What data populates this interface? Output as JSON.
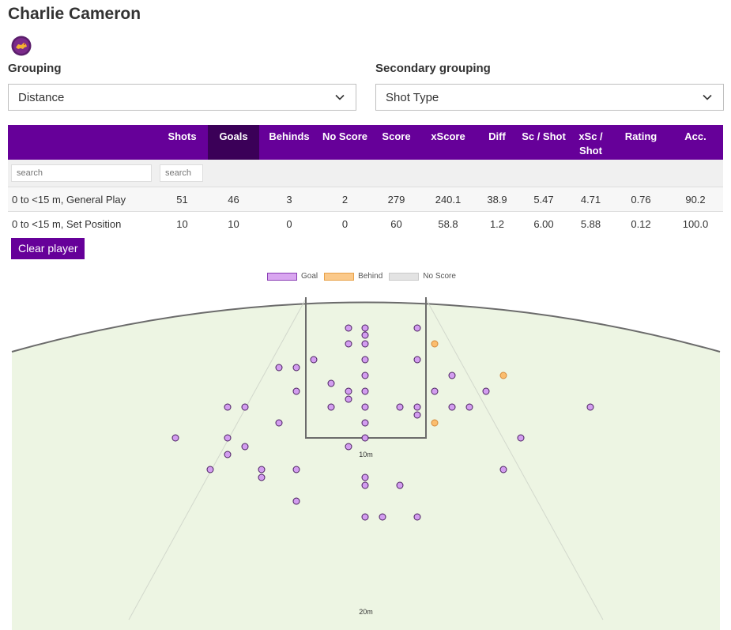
{
  "player": {
    "name": "Charlie Cameron",
    "logo_icon": "brisbane-lions-logo-icon"
  },
  "grouping": {
    "label": "Grouping",
    "value": "Distance"
  },
  "secondary_grouping": {
    "label": "Secondary grouping",
    "value": "Shot Type"
  },
  "table": {
    "headers": [
      "",
      "Shots",
      "Goals",
      "Behinds",
      "No Score",
      "Score",
      "xScore",
      "Diff",
      "Sc / Shot",
      "xSc / Shot",
      "Rating",
      "Acc."
    ],
    "active_header": "Goals",
    "search_placeholder": "search",
    "rows": [
      [
        "0 to <15 m, General Play",
        "51",
        "46",
        "3",
        "2",
        "279",
        "240.1",
        "38.9",
        "5.47",
        "4.71",
        "0.76",
        "90.2"
      ],
      [
        "0 to <15 m, Set Position",
        "10",
        "10",
        "0",
        "0",
        "60",
        "58.8",
        "1.2",
        "6.00",
        "5.88",
        "0.12",
        "100.0"
      ]
    ]
  },
  "clear_button": "Clear player",
  "legend": [
    {
      "label": "Goal",
      "fill": "#d9a6f0",
      "stroke": "#8a3fb5"
    },
    {
      "label": "Behind",
      "fill": "#fbc98a",
      "stroke": "#e8a24a"
    },
    {
      "label": "No Score",
      "fill": "#e3e3e3",
      "stroke": "#c9c9c9"
    }
  ],
  "field": {
    "ring_labels": [
      "10m",
      "20m"
    ],
    "colors": {
      "grass": "#edf5e3",
      "goal": "#d39df0",
      "behind": "#fbbd6e",
      "outline": "#6b6b6b"
    }
  }
}
